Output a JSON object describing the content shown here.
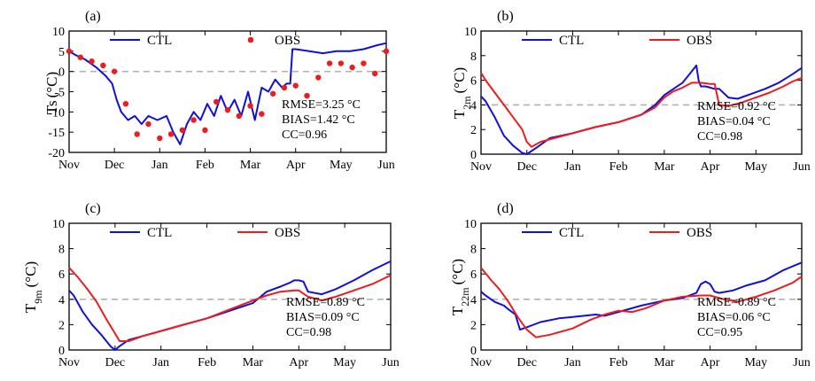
{
  "chart_data": [
    {
      "panel": "(a)",
      "type": "line",
      "ylabel": "Ts (°C)",
      "ylabel_main": "Ts",
      "ylabel_sub": "",
      "unit": "(°C)",
      "ylim": [
        -20,
        10
      ],
      "yticks": [
        "10",
        "5",
        "0",
        "-5",
        "-10",
        "-15",
        "-20"
      ],
      "xticks": [
        "Nov",
        "Dec",
        "Jan",
        "Feb",
        "Mar",
        "Apr",
        "May",
        "Jun"
      ],
      "reference_line": 0,
      "series": [
        {
          "name": "CTL",
          "style": "line",
          "color": "#1010dd",
          "x": [
            0,
            0.15,
            0.35,
            0.6,
            0.8,
            0.95,
            1.05,
            1.15,
            1.3,
            1.45,
            1.6,
            1.75,
            1.95,
            2.15,
            2.3,
            2.45,
            2.6,
            2.75,
            2.9,
            3.05,
            3.2,
            3.35,
            3.5,
            3.65,
            3.8,
            3.95,
            4.1,
            4.25,
            4.4,
            4.55,
            4.7,
            4.8,
            4.88,
            4.93,
            5.0,
            5.3,
            5.6,
            5.9,
            6.2,
            6.5,
            6.8,
            7.0
          ],
          "values": [
            5,
            4,
            3,
            1,
            -1,
            -3,
            -7,
            -10,
            -12,
            -11,
            -13,
            -11,
            -12,
            -11,
            -15,
            -18,
            -13,
            -10,
            -12,
            -8,
            -11,
            -6,
            -10,
            -7,
            -11,
            -5,
            -12,
            -4,
            -5,
            -2,
            -4,
            -3,
            -3,
            5.5,
            5.5,
            5,
            4.5,
            5,
            5,
            5.5,
            6.5,
            7
          ]
        },
        {
          "name": "OBS",
          "style": "markers",
          "color": "#ee1c1c",
          "x": [
            0,
            0.25,
            0.5,
            0.75,
            1.0,
            1.25,
            1.5,
            1.75,
            2.0,
            2.25,
            2.5,
            2.75,
            3.0,
            3.25,
            3.5,
            3.75,
            4.0,
            4.25,
            4.5,
            4.75,
            5.0,
            5.25,
            5.5,
            5.75,
            6.0,
            6.25,
            6.5,
            6.75,
            7.0
          ],
          "values": [
            5,
            3.5,
            2.5,
            1.5,
            0,
            -8,
            -15.5,
            -13,
            -16.5,
            -15.5,
            -14.5,
            -12,
            -14.5,
            -7.5,
            -9.5,
            -11,
            -8.5,
            -10.5,
            -5.5,
            -4,
            -3.5,
            -6,
            -1.5,
            2,
            2,
            1,
            2,
            -0.5,
            5
          ]
        }
      ],
      "stats": {
        "rmse": "RMSE=3.25 °C",
        "bias": "BIAS=1.42 °C",
        "cc": "CC=0.96"
      }
    },
    {
      "panel": "(b)",
      "type": "line",
      "ylabel": "T2m (°C)",
      "ylabel_main": "T",
      "ylabel_sub": "2m",
      "unit": "(°C)",
      "ylim": [
        0,
        10
      ],
      "yticks": [
        "10",
        "8",
        "6",
        "4",
        "2",
        "0"
      ],
      "xticks": [
        "Nov",
        "Dec",
        "Jan",
        "Feb",
        "Mar",
        "Apr",
        "May",
        "Jun"
      ],
      "reference_line": 4,
      "series": [
        {
          "name": "CTL",
          "style": "line",
          "color": "#1010dd",
          "x": [
            0,
            0.1,
            0.3,
            0.5,
            0.7,
            0.9,
            1.0,
            1.2,
            1.5,
            2.0,
            2.5,
            3.0,
            3.5,
            3.8,
            4.0,
            4.2,
            4.4,
            4.55,
            4.7,
            4.75,
            4.8,
            4.9,
            5.0,
            5.1,
            5.2,
            5.4,
            5.6,
            5.9,
            6.2,
            6.5,
            6.8,
            7.0
          ],
          "values": [
            4.7,
            4.3,
            3,
            1.5,
            0.7,
            0.1,
            0,
            0.5,
            1.3,
            1.7,
            2.2,
            2.6,
            3.2,
            4.0,
            4.8,
            5.3,
            5.8,
            6.5,
            7.2,
            6,
            5.5,
            5.5,
            5.4,
            5.3,
            5.3,
            4.6,
            4.5,
            4.9,
            5.3,
            5.8,
            6.5,
            7.0
          ]
        },
        {
          "name": "OBS",
          "style": "line",
          "color": "#ee1c1c",
          "x": [
            0,
            0.1,
            0.3,
            0.5,
            0.7,
            0.9,
            1.0,
            1.1,
            1.3,
            1.6,
            2.0,
            2.5,
            3.0,
            3.5,
            3.8,
            4.0,
            4.2,
            4.4,
            4.6,
            4.8,
            5.0,
            5.1,
            5.2,
            5.4,
            5.7,
            6.0,
            6.3,
            6.6,
            6.8,
            7.0
          ],
          "values": [
            6.6,
            6.0,
            5.0,
            4.0,
            3.0,
            2.0,
            1.0,
            0.6,
            1.0,
            1.3,
            1.7,
            2.2,
            2.6,
            3.2,
            3.8,
            4.6,
            5.1,
            5.4,
            5.8,
            5.8,
            5.7,
            5.7,
            4.0,
            3.9,
            4.2,
            4.6,
            5.0,
            5.5,
            5.9,
            6.2
          ]
        }
      ],
      "stats": {
        "rmse": "RMSE=0.92 °C",
        "bias": "BIAS=0.04 °C",
        "cc": "CC=0.98"
      }
    },
    {
      "panel": "(c)",
      "type": "line",
      "ylabel": "T9m (°C)",
      "ylabel_main": "T",
      "ylabel_sub": "9m",
      "unit": "(°C)",
      "ylim": [
        0,
        10
      ],
      "yticks": [
        "10",
        "8",
        "6",
        "4",
        "2",
        "0"
      ],
      "xticks": [
        "Nov",
        "Dec",
        "Jan",
        "Feb",
        "Mar",
        "Apr",
        "May",
        "Jun"
      ],
      "reference_line": 4,
      "series": [
        {
          "name": "CTL",
          "style": "line",
          "color": "#1010dd",
          "x": [
            0,
            0.1,
            0.3,
            0.5,
            0.7,
            0.9,
            1.0,
            1.1,
            1.3,
            1.6,
            2.0,
            2.5,
            3.0,
            3.5,
            4.0,
            4.3,
            4.6,
            4.8,
            4.9,
            5.0,
            5.1,
            5.2,
            5.5,
            5.8,
            6.2,
            6.6,
            7.0
          ],
          "values": [
            4.7,
            4.3,
            3.0,
            2.0,
            1.2,
            0.3,
            0.0,
            0.3,
            0.8,
            1.1,
            1.5,
            2.0,
            2.5,
            3.1,
            3.7,
            4.6,
            5.0,
            5.3,
            5.5,
            5.5,
            5.4,
            4.6,
            4.4,
            4.8,
            5.5,
            6.3,
            7.0
          ]
        },
        {
          "name": "OBS",
          "style": "line",
          "color": "#ee1c1c",
          "x": [
            0,
            0.2,
            0.4,
            0.6,
            0.8,
            1.0,
            1.1,
            1.3,
            1.6,
            2.0,
            2.5,
            3.0,
            3.5,
            4.0,
            4.3,
            4.6,
            4.9,
            5.0,
            5.2,
            5.5,
            5.8,
            6.2,
            6.6,
            7.0
          ],
          "values": [
            6.5,
            5.7,
            4.8,
            3.8,
            2.5,
            1.3,
            0.7,
            0.7,
            1.1,
            1.5,
            2.0,
            2.5,
            3.2,
            3.9,
            4.3,
            4.6,
            4.7,
            4.7,
            4.2,
            3.9,
            4.2,
            4.7,
            5.2,
            5.9
          ]
        }
      ],
      "stats": {
        "rmse": "RMSE=0.89 °C",
        "bias": "BIAS=0.09 °C",
        "cc": "CC=0.98"
      }
    },
    {
      "panel": "(d)",
      "type": "line",
      "ylabel": "T22m (°C)",
      "ylabel_main": "T",
      "ylabel_sub": "22m",
      "unit": "(°C)",
      "ylim": [
        0,
        10
      ],
      "yticks": [
        "10",
        "8",
        "6",
        "4",
        "2",
        "0"
      ],
      "xticks": [
        "Nov",
        "Dec",
        "Jan",
        "Feb",
        "Mar",
        "Apr",
        "May",
        "Jun"
      ],
      "reference_line": 4,
      "series": [
        {
          "name": "CTL",
          "style": "line",
          "color": "#1010dd",
          "x": [
            0,
            0.1,
            0.3,
            0.5,
            0.6,
            0.75,
            0.85,
            1.0,
            1.3,
            1.7,
            2.0,
            2.5,
            2.7,
            3.0,
            3.5,
            4.0,
            4.4,
            4.7,
            4.8,
            4.9,
            5.0,
            5.1,
            5.2,
            5.5,
            5.8,
            6.2,
            6.6,
            7.0
          ],
          "values": [
            4.6,
            4.3,
            3.8,
            3.5,
            3.2,
            2.8,
            1.6,
            1.8,
            2.2,
            2.5,
            2.6,
            2.8,
            2.7,
            3.0,
            3.5,
            3.9,
            4.1,
            4.5,
            5.2,
            5.4,
            5.2,
            4.6,
            4.5,
            4.7,
            5.1,
            5.5,
            6.3,
            6.9
          ]
        },
        {
          "name": "OBS",
          "style": "line",
          "color": "#ee1c1c",
          "x": [
            0,
            0.2,
            0.4,
            0.6,
            0.8,
            1.0,
            1.2,
            1.5,
            2.0,
            2.4,
            2.7,
            3.0,
            3.3,
            3.6,
            4.0,
            4.4,
            4.8,
            5.0,
            5.3,
            5.6,
            6.0,
            6.4,
            6.8,
            7.0
          ],
          "values": [
            6.5,
            5.6,
            4.8,
            3.8,
            2.6,
            1.6,
            1.0,
            1.2,
            1.7,
            2.4,
            2.8,
            3.1,
            3.0,
            3.3,
            3.9,
            4.2,
            4.3,
            4.3,
            4.0,
            3.8,
            4.2,
            4.7,
            5.3,
            5.8
          ]
        }
      ],
      "stats": {
        "rmse": "RMSE=0.89 °C",
        "bias": "BIAS=0.06 °C",
        "cc": "CC=0.95"
      }
    }
  ]
}
